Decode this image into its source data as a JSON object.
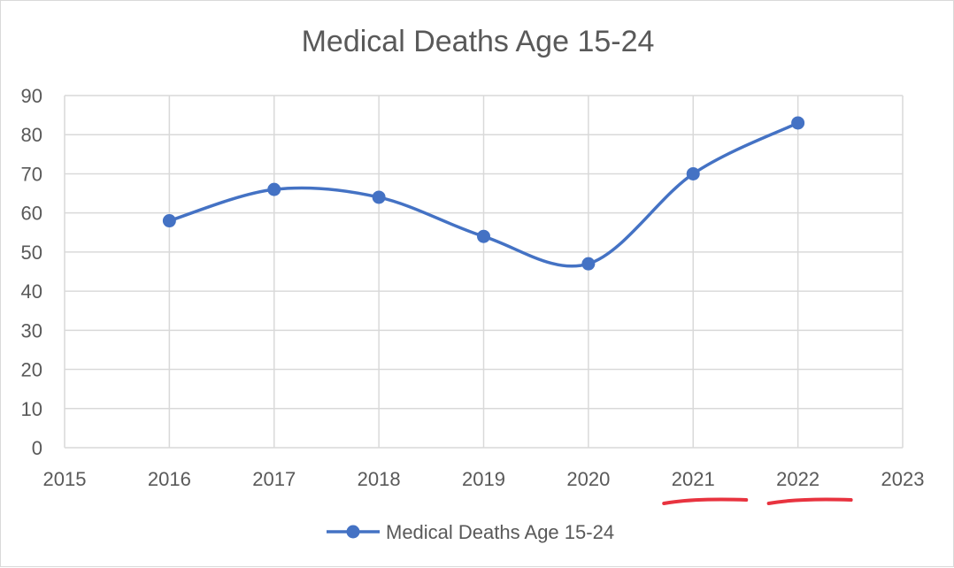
{
  "chart_data": {
    "type": "line",
    "title": "Medical Deaths Age 15-24",
    "xlabel": "",
    "ylabel": "",
    "x": [
      2016,
      2017,
      2018,
      2019,
      2020,
      2021,
      2022
    ],
    "series": [
      {
        "name": "Medical Deaths Age 15-24",
        "values": [
          58,
          66,
          64,
          54,
          47,
          70,
          83
        ]
      }
    ],
    "xlim": [
      2015,
      2023
    ],
    "ylim": [
      0,
      90
    ],
    "x_ticks": [
      2015,
      2016,
      2017,
      2018,
      2019,
      2020,
      2021,
      2022,
      2023
    ],
    "y_ticks": [
      0,
      10,
      20,
      30,
      40,
      50,
      60,
      70,
      80,
      90
    ],
    "grid": true,
    "smooth": true,
    "legend_position": "bottom",
    "line_color": "#4472c4",
    "grid_color": "#d9d9d9",
    "text_color": "#595959",
    "annotation_color": "#e8333f",
    "underlined_x_ticks": [
      2021,
      2022
    ]
  }
}
